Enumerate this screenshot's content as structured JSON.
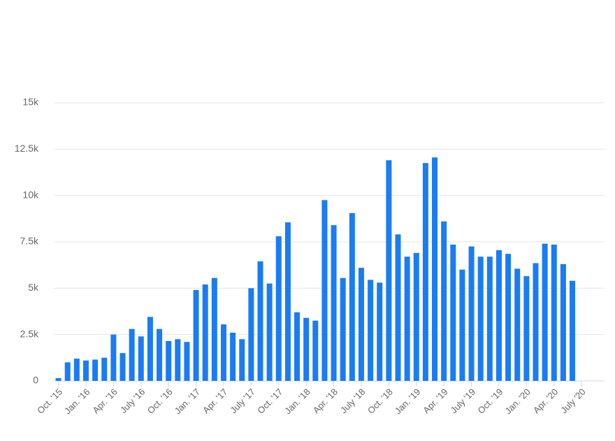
{
  "chart_data": {
    "type": "bar",
    "categories": [
      "Oct. '15",
      null,
      null,
      "Jan. '16",
      null,
      null,
      "Apr. '16",
      null,
      null,
      "July '16",
      null,
      null,
      "Oct. '16",
      null,
      null,
      "Jan. '17",
      null,
      null,
      "Apr. '17",
      null,
      null,
      "July '17",
      null,
      null,
      "Oct. '17",
      null,
      null,
      "Jan. '18",
      null,
      null,
      "Apr. '18",
      null,
      null,
      "July '18",
      null,
      null,
      "Oct. '18",
      null,
      null,
      "Jan. '19",
      null,
      null,
      "Apr. '19",
      null,
      null,
      "July '19",
      null,
      null,
      "Oct. '19",
      null,
      null,
      "Jan. '20",
      null,
      null,
      "Apr. '20",
      null,
      null,
      "July '20",
      null,
      null
    ],
    "values": [
      150,
      1000,
      1200,
      1100,
      1150,
      1250,
      2500,
      1500,
      2800,
      2400,
      3450,
      2800,
      2150,
      2250,
      2100,
      4900,
      5200,
      5550,
      3050,
      2600,
      2250,
      5000,
      6450,
      5250,
      7800,
      8550,
      3700,
      3400,
      3250,
      9750,
      8400,
      5550,
      9050,
      6100,
      5450,
      5300,
      11900,
      7900,
      6700,
      6900,
      11750,
      12050,
      8600,
      7350,
      6000,
      7250,
      6700,
      6700,
      7050,
      6850,
      6050,
      5650,
      6350,
      7400,
      7350,
      6300,
      5400,
      null,
      null,
      null
    ],
    "color": "#1a7cf5",
    "ylim": [
      0,
      15000
    ],
    "yticks": [
      0,
      {
        "value": 2500,
        "label": "2.5k"
      },
      {
        "value": 5000,
        "label": "5k"
      },
      {
        "value": 7500,
        "label": "7.5k"
      },
      {
        "value": 10000,
        "label": "10k"
      },
      {
        "value": 12500,
        "label": "12.5k"
      },
      {
        "value": 15000,
        "label": "15k"
      }
    ],
    "grid": true
  }
}
